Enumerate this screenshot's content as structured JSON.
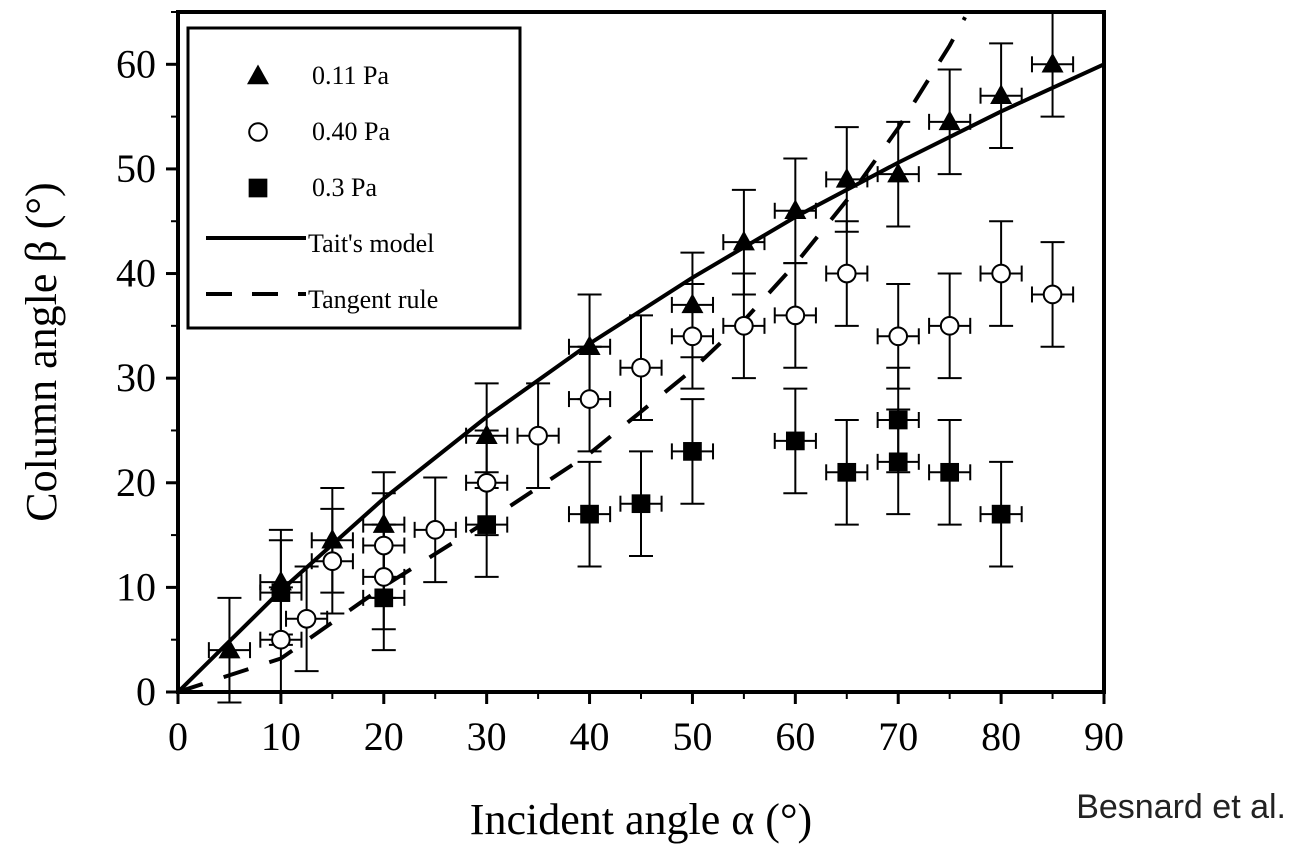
{
  "chart_data": {
    "type": "scatter",
    "xlabel": "Incident angle α (°)",
    "ylabel": "Column angle β (°)",
    "xlim": [
      0,
      90
    ],
    "ylim": [
      0,
      65
    ],
    "x_ticks": [
      0,
      10,
      20,
      30,
      40,
      50,
      60,
      70,
      80,
      90
    ],
    "y_ticks": [
      0,
      10,
      20,
      30,
      40,
      50,
      60
    ],
    "grid": false,
    "legend_position": "top-left",
    "series": [
      {
        "name": "0.11 Pa",
        "marker": "filled-triangle",
        "x_error": 2,
        "y_error": 5,
        "points": [
          {
            "x": 5,
            "y": 4
          },
          {
            "x": 10,
            "y": 10.5
          },
          {
            "x": 15,
            "y": 14.5
          },
          {
            "x": 20,
            "y": 16
          },
          {
            "x": 30,
            "y": 24.5
          },
          {
            "x": 40,
            "y": 33
          },
          {
            "x": 50,
            "y": 37
          },
          {
            "x": 55,
            "y": 43
          },
          {
            "x": 60,
            "y": 46
          },
          {
            "x": 65,
            "y": 49
          },
          {
            "x": 70,
            "y": 49.5
          },
          {
            "x": 75,
            "y": 54.5
          },
          {
            "x": 80,
            "y": 57
          },
          {
            "x": 85,
            "y": 60
          }
        ]
      },
      {
        "name": "0.40 Pa",
        "marker": "open-circle",
        "x_error": 2,
        "y_error": 5,
        "points": [
          {
            "x": 10,
            "y": 5
          },
          {
            "x": 12.5,
            "y": 7
          },
          {
            "x": 15,
            "y": 12.5
          },
          {
            "x": 20,
            "y": 14
          },
          {
            "x": 20,
            "y": 11
          },
          {
            "x": 25,
            "y": 15.5
          },
          {
            "x": 30,
            "y": 20
          },
          {
            "x": 35,
            "y": 24.5
          },
          {
            "x": 40,
            "y": 28
          },
          {
            "x": 45,
            "y": 31
          },
          {
            "x": 50,
            "y": 34
          },
          {
            "x": 55,
            "y": 35
          },
          {
            "x": 60,
            "y": 36
          },
          {
            "x": 65,
            "y": 40
          },
          {
            "x": 70,
            "y": 34
          },
          {
            "x": 75,
            "y": 35
          },
          {
            "x": 80,
            "y": 40
          },
          {
            "x": 85,
            "y": 38
          }
        ]
      },
      {
        "name": "0.3 Pa",
        "marker": "filled-square",
        "x_error": 2,
        "y_error": 5,
        "points": [
          {
            "x": 10,
            "y": 9.5
          },
          {
            "x": 20,
            "y": 9
          },
          {
            "x": 30,
            "y": 16
          },
          {
            "x": 40,
            "y": 17
          },
          {
            "x": 45,
            "y": 18
          },
          {
            "x": 50,
            "y": 23
          },
          {
            "x": 60,
            "y": 24
          },
          {
            "x": 65,
            "y": 21
          },
          {
            "x": 70,
            "y": 26
          },
          {
            "x": 70,
            "y": 22
          },
          {
            "x": 75,
            "y": 21
          },
          {
            "x": 80,
            "y": 17
          }
        ]
      },
      {
        "name": "Tait's model",
        "line_style": "solid",
        "curve": [
          {
            "x": 0,
            "y": 0
          },
          {
            "x": 10,
            "y": 9.7
          },
          {
            "x": 20,
            "y": 18.5
          },
          {
            "x": 30,
            "y": 26.3
          },
          {
            "x": 40,
            "y": 33.3
          },
          {
            "x": 50,
            "y": 39.6
          },
          {
            "x": 60,
            "y": 45.4
          },
          {
            "x": 70,
            "y": 50.6
          },
          {
            "x": 80,
            "y": 55.5
          },
          {
            "x": 90,
            "y": 60
          }
        ]
      },
      {
        "name": "Tangent rule",
        "line_style": "dashed",
        "curve": [
          {
            "x": 0,
            "y": 0
          },
          {
            "x": 10,
            "y": 3.2
          },
          {
            "x": 20,
            "y": 10.1
          },
          {
            "x": 30,
            "y": 16.3
          },
          {
            "x": 40,
            "y": 22.8
          },
          {
            "x": 50,
            "y": 30.8
          },
          {
            "x": 55,
            "y": 35.5
          },
          {
            "x": 60,
            "y": 40.9
          },
          {
            "x": 65,
            "y": 47.0
          },
          {
            "x": 70,
            "y": 53.9
          },
          {
            "x": 75,
            "y": 61.8
          },
          {
            "x": 76.5,
            "y": 64.5
          }
        ]
      }
    ]
  },
  "credit": "Besnard et al."
}
